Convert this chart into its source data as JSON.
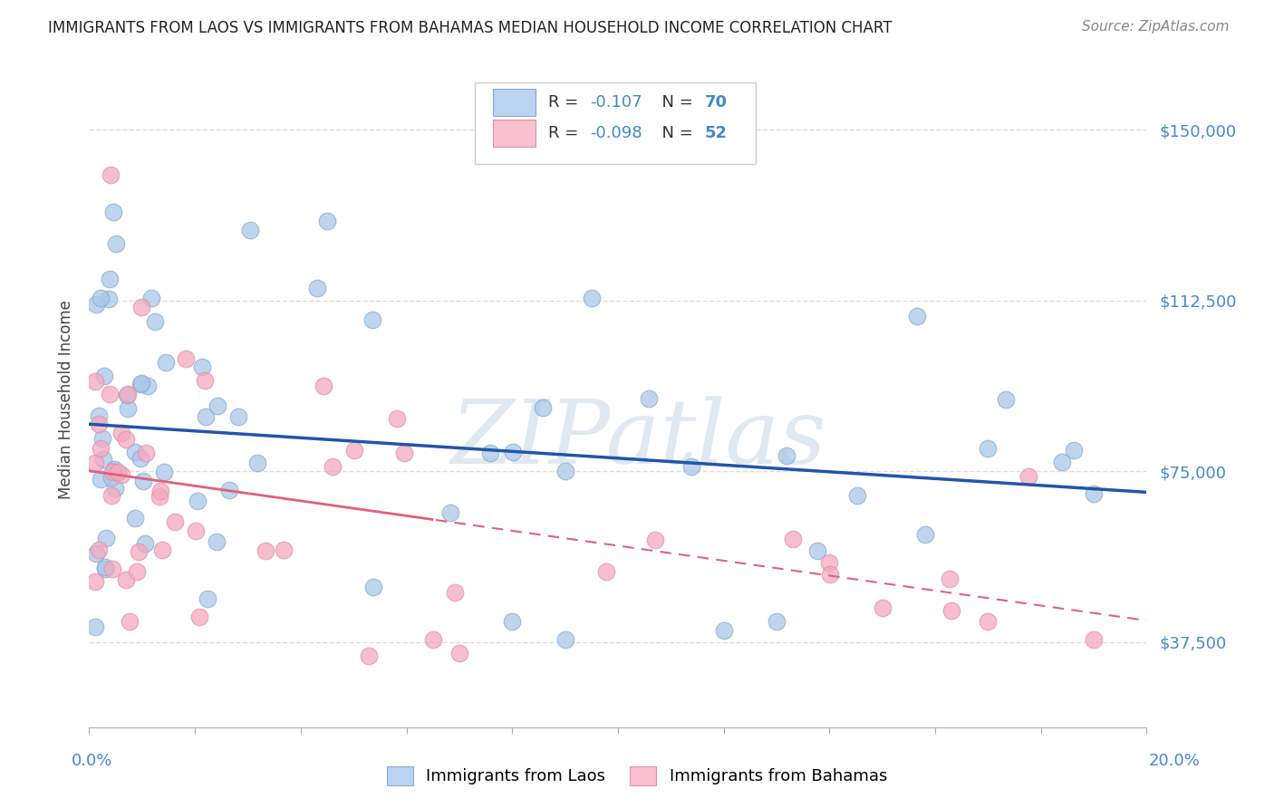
{
  "title": "IMMIGRANTS FROM LAOS VS IMMIGRANTS FROM BAHAMAS MEDIAN HOUSEHOLD INCOME CORRELATION CHART",
  "source": "Source: ZipAtlas.com",
  "ylabel": "Median Household Income",
  "xmin": 0.0,
  "xmax": 0.2,
  "ymin": 18750,
  "ymax": 162500,
  "yticks": [
    37500,
    75000,
    112500,
    150000
  ],
  "ytick_labels": [
    "$37,500",
    "$75,000",
    "$112,500",
    "$150,000"
  ],
  "watermark": "ZIPatlas",
  "laos_N": 70,
  "bahamas_N": 52,
  "laos_scatter_color": "#a8c8e8",
  "bahamas_scatter_color": "#f4a8c0",
  "laos_line_color": "#2255aa",
  "bahamas_line_color": "#e06080",
  "laos_legend_color": "#b8d4f0",
  "bahamas_legend_color": "#f8c0d0",
  "blue_text_color": "#4488cc",
  "title_color": "#222222",
  "source_color": "#888888",
  "ylabel_color": "#444444",
  "axis_color": "#cccccc",
  "grid_color": "#dddddd",
  "right_tick_color": "#4488cc"
}
